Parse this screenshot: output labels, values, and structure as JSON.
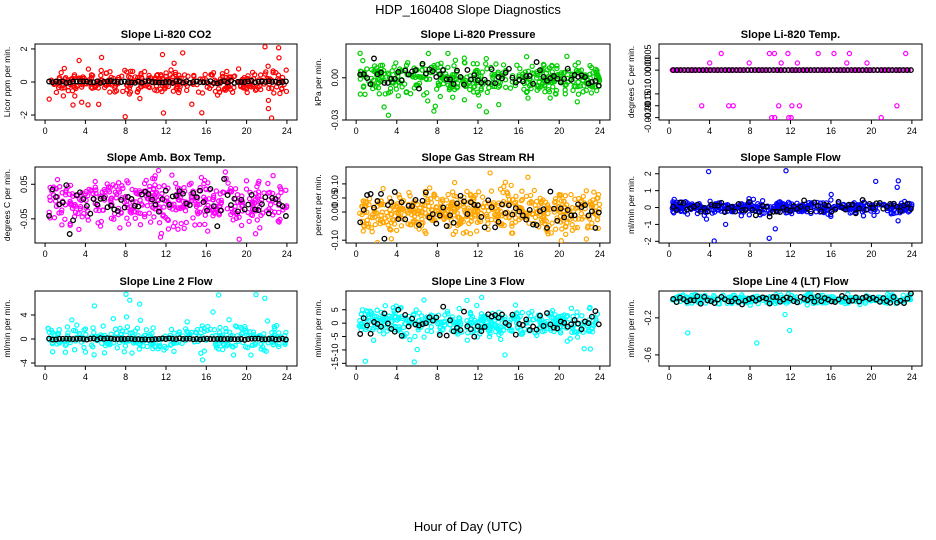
{
  "main_title": "HDP_160408  Slope Diagnostics",
  "x_axis_label": "Hour of Day (UTC)",
  "colors": {
    "black": "#000000",
    "red": "#ff0000",
    "green": "#00cc00",
    "magenta": "#ff00ff",
    "orange": "#ffa500",
    "blue": "#0000ff",
    "cyan": "#00ffff"
  },
  "chart_data": [
    {
      "type": "scatter",
      "title": "Slope Li-820 CO2",
      "ylabel": "Licor ppm per min.",
      "xlim": [
        -1,
        25
      ],
      "xticks": [
        "0",
        "4",
        "8",
        "12",
        "16",
        "20",
        "24"
      ],
      "ylim": [
        -2.3,
        2.3
      ],
      "yticks": [
        {
          "v": -2,
          "label": "-2"
        },
        {
          "v": 0,
          "label": "0"
        },
        {
          "v": 2,
          "label": "2"
        }
      ],
      "color": "#ff0000",
      "series_color": "#ff0000",
      "scatter_sd": 0.35,
      "outlier_range": [
        -2.2,
        2.2
      ],
      "n_points": 340,
      "outlier_rate": 0.1,
      "black_sd": 0.04,
      "black_n": 70
    },
    {
      "type": "scatter",
      "title": "Slope Li-820 Pressure",
      "ylabel": "kPa per min.",
      "xlim": [
        -1,
        25
      ],
      "xticks": [
        "0",
        "4",
        "8",
        "12",
        "16",
        "20",
        "24"
      ],
      "ylim": [
        -0.03,
        0.024
      ],
      "yticks": [
        {
          "v": -0.03,
          "label": "-0.03"
        },
        {
          "v": 0,
          "label": "0.00"
        }
      ],
      "color": "#00cc00",
      "series_color": "#00cc00",
      "scatter_sd": 0.006,
      "outlier_range": [
        -0.028,
        0.022
      ],
      "n_points": 420,
      "outlier_rate": 0.05,
      "black_sd": 0.004,
      "black_n": 70
    },
    {
      "type": "scatter",
      "title": "Slope Li-820 Temp.",
      "ylabel": "degrees C per min.",
      "xlim": [
        -1,
        25
      ],
      "xticks": [
        "0",
        "4",
        "8",
        "12",
        "16",
        "20",
        "24"
      ],
      "ylim": [
        -0.0021,
        0.0011
      ],
      "yticks": [
        {
          "v": -0.002,
          "label": "-0.0020"
        },
        {
          "v": -0.0015,
          "label": "-0.0015"
        },
        {
          "v": -0.001,
          "label": "-0.0010"
        },
        {
          "v": 0,
          "label": "0.0000"
        },
        {
          "v": 0.0005,
          "label": "0.0005"
        }
      ],
      "color": "#ff00ff",
      "series_color": "#ff00ff",
      "scatter_sd": 0,
      "outlier_range": [
        -0.002,
        0.001
      ],
      "n_points": 200,
      "outlier_rate": 0.08,
      "black_sd": 0,
      "black_n": 65
    },
    {
      "type": "scatter",
      "title": "Slope Amb. Box Temp.",
      "ylabel": "degrees C per min.",
      "xlim": [
        -1,
        25
      ],
      "xticks": [
        "0",
        "4",
        "8",
        "12",
        "16",
        "20",
        "24"
      ],
      "ylim": [
        -0.12,
        0.1
      ],
      "yticks": [
        {
          "v": -0.05,
          "label": "-0.05"
        },
        {
          "v": 0.05,
          "label": "0.05"
        }
      ],
      "color": "#ff00ff",
      "series_color": "#ff00ff",
      "scatter_sd": 0.035,
      "outlier_range": [
        -0.11,
        0.09
      ],
      "n_points": 420,
      "outlier_rate": 0.05,
      "black_sd": 0.03,
      "black_n": 70
    },
    {
      "type": "scatter",
      "title": "Slope Gas Stream RH",
      "ylabel": "percent per min.",
      "xlim": [
        -1,
        25
      ],
      "xticks": [
        "0",
        "4",
        "8",
        "12",
        "16",
        "20",
        "24"
      ],
      "ylim": [
        -0.11,
        0.16
      ],
      "yticks": [
        {
          "v": -0.1,
          "label": "-0.10"
        },
        {
          "v": 0,
          "label": "0.00"
        },
        {
          "v": 0.05,
          "label": "0.05"
        },
        {
          "v": 0.1,
          "label": "0.10"
        }
      ],
      "color": "#ffa500",
      "series_color": "#ffa500",
      "scatter_sd": 0.04,
      "outlier_range": [
        -0.1,
        0.15
      ],
      "n_points": 520,
      "outlier_rate": 0.04,
      "black_sd": 0.04,
      "black_n": 70
    },
    {
      "type": "scatter",
      "title": "Slope Sample Flow",
      "ylabel": "ml/min per min.",
      "xlim": [
        -1,
        25
      ],
      "xticks": [
        "0",
        "4",
        "8",
        "12",
        "16",
        "20",
        "24"
      ],
      "ylim": [
        -2.1,
        2.4
      ],
      "yticks": [
        {
          "v": -2,
          "label": "-2"
        },
        {
          "v": -1,
          "label": "-1"
        },
        {
          "v": 0,
          "label": "0"
        },
        {
          "v": 1,
          "label": "1"
        },
        {
          "v": 2,
          "label": "2"
        }
      ],
      "color": "#0000ff",
      "series_color": "#0000ff",
      "scatter_sd": 0.18,
      "outlier_range": [
        -2,
        2.2
      ],
      "n_points": 420,
      "outlier_rate": 0.04,
      "black_sd": 0.2,
      "black_n": 70
    },
    {
      "type": "scatter",
      "title": "Slope Line 2 Flow",
      "ylabel": "ml/min per min.",
      "xlim": [
        -1,
        25
      ],
      "xticks": [
        "0",
        "4",
        "8",
        "12",
        "16",
        "20",
        "24"
      ],
      "ylim": [
        -4.5,
        8
      ],
      "yticks": [
        {
          "v": -4,
          "label": "-4"
        },
        {
          "v": 0,
          "label": "0"
        },
        {
          "v": 4,
          "label": "4"
        }
      ],
      "color": "#00ffff",
      "series_color": "#00ffff",
      "scatter_sd": 1.1,
      "outlier_range": [
        -4.2,
        7.5
      ],
      "n_points": 330,
      "outlier_rate": 0.1,
      "black_sd": 0.05,
      "black_n": 70
    },
    {
      "type": "scatter",
      "title": "Slope Line 3 Flow",
      "ylabel": "ml/min per min.",
      "xlim": [
        -1,
        25
      ],
      "xticks": [
        "0",
        "4",
        "8",
        "12",
        "16",
        "20",
        "24"
      ],
      "ylim": [
        -16,
        12
      ],
      "yticks": [
        {
          "v": -15,
          "label": "-15"
        },
        {
          "v": -10,
          "label": "-10"
        },
        {
          "v": -5,
          "label": "-5"
        },
        {
          "v": 0,
          "label": "0"
        },
        {
          "v": 5,
          "label": "5"
        }
      ],
      "color": "#00ffff",
      "series_color": "#00ffff",
      "scatter_sd": 2.5,
      "outlier_range": [
        -15,
        11
      ],
      "n_points": 420,
      "outlier_rate": 0.06,
      "black_sd": 3,
      "black_n": 70
    },
    {
      "type": "scatter",
      "title": "Slope Line 4 (LT) Flow",
      "ylabel": "ml/min per min.",
      "xlim": [
        -1,
        25
      ],
      "xticks": [
        "0",
        "4",
        "8",
        "12",
        "16",
        "20",
        "24"
      ],
      "ylim": [
        -0.72,
        0.09
      ],
      "yticks": [
        {
          "v": -0.6,
          "label": "-0.6"
        },
        {
          "v": -0.2,
          "label": "-0.2"
        }
      ],
      "color": "#00ffff",
      "series_color": "#00ffff",
      "scatter_sd": 0.025,
      "outlier_range": [
        -0.7,
        0.05
      ],
      "n_points": 350,
      "outlier_rate": 0.02,
      "black_sd": 0.025,
      "black_n": 70
    }
  ]
}
